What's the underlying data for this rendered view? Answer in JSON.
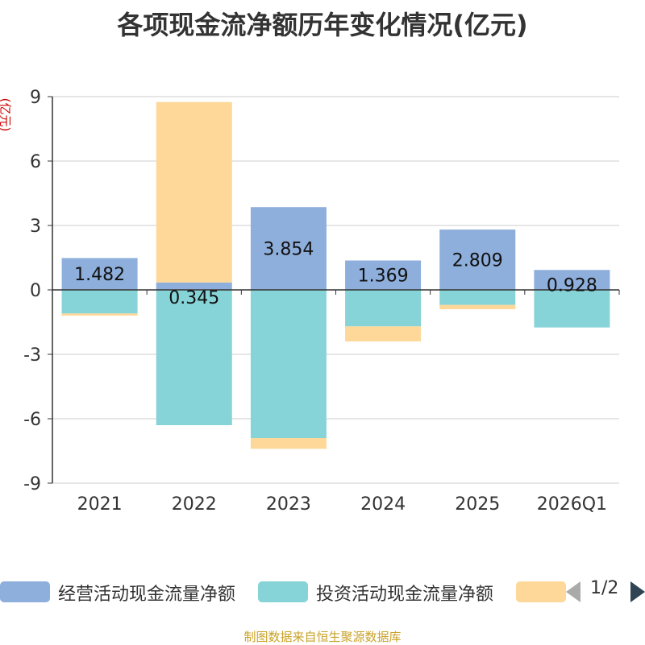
{
  "title": "各项现金流净额历年变化情况(亿元)",
  "source": "制图数据来自恒生聚源数据库",
  "pager": {
    "text": "1/2"
  },
  "colors": {
    "operating": "#8eaedb",
    "investing": "#86d4d8",
    "financing": "#fdd898",
    "axis": "#333333",
    "grid": "#cccccc",
    "unit": "#cc0000",
    "source": "#c9a227"
  },
  "chart_data": {
    "type": "bar",
    "stacked": true,
    "unit_label": "(亿元)",
    "categories": [
      "2021",
      "2022",
      "2023",
      "2024",
      "2025",
      "2026Q1"
    ],
    "ylim": [
      -9,
      9
    ],
    "yticks": [
      9,
      6,
      3,
      0,
      -3,
      -6,
      -9
    ],
    "grid": true,
    "legend_position": "bottom",
    "series": [
      {
        "name": "经营活动现金流量净额",
        "values": [
          1.482,
          0.345,
          3.854,
          1.369,
          2.809,
          0.928
        ],
        "labels": [
          "1.482",
          "0.345",
          "3.854",
          "1.369",
          "2.809",
          "0.928"
        ]
      },
      {
        "name": "投资活动现金流量净额",
        "values": [
          -1.1,
          -6.3,
          -6.9,
          -1.7,
          -0.7,
          -1.75
        ]
      },
      {
        "values": [
          -0.1,
          8.4,
          -0.5,
          -0.7,
          -0.2,
          0
        ]
      }
    ]
  }
}
